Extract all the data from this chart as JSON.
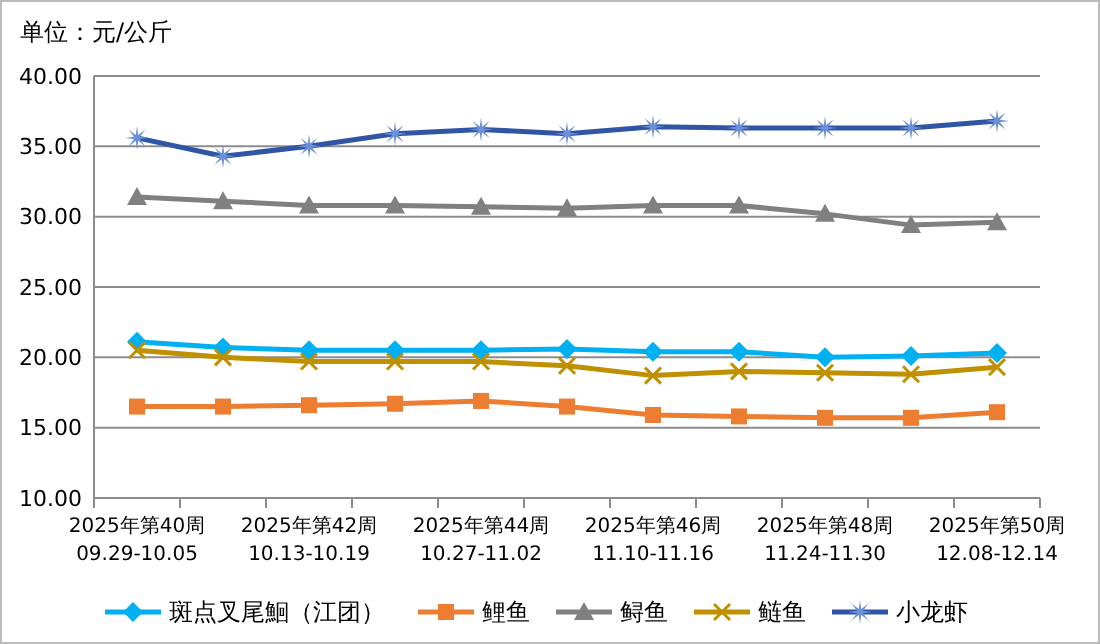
{
  "chart_data": {
    "type": "line",
    "ylabel": "单位：元/公斤",
    "categories": [
      "2025年第40周\n09.29-10.05",
      null,
      "2025年第42周\n10.13-10.19",
      null,
      "2025年第44周\n10.27-11.02",
      null,
      "2025年第46周\n11.10-11.16",
      null,
      "2025年第48周\n11.24-11.30",
      null,
      "2025年第50周\n12.08-12.14"
    ],
    "series": [
      {
        "name": "斑点叉尾鮰（江团）",
        "color": "#00b0f0",
        "marker": "diamond",
        "values": [
          21.1,
          20.7,
          20.5,
          20.5,
          20.5,
          20.6,
          20.4,
          20.4,
          20.0,
          20.1,
          20.3
        ]
      },
      {
        "name": "鲤鱼",
        "color": "#ed7d31",
        "marker": "square",
        "values": [
          16.5,
          16.5,
          16.6,
          16.7,
          16.9,
          16.5,
          15.9,
          15.8,
          15.7,
          15.7,
          16.1
        ]
      },
      {
        "name": "鲟鱼",
        "color": "#808080",
        "marker": "triangle",
        "values": [
          31.4,
          31.1,
          30.8,
          30.8,
          30.7,
          30.6,
          30.8,
          30.8,
          30.2,
          29.4,
          29.6
        ]
      },
      {
        "name": "鲢鱼",
        "color": "#bf9000",
        "marker": "cross",
        "values": [
          20.5,
          20.0,
          19.7,
          19.7,
          19.7,
          19.4,
          18.7,
          19.0,
          18.9,
          18.8,
          19.3
        ]
      },
      {
        "name": "小龙虾",
        "color": "#2f55a4",
        "marker": "star",
        "values": [
          35.6,
          34.3,
          35.0,
          35.9,
          36.2,
          35.9,
          36.4,
          36.3,
          36.3,
          36.3,
          36.8
        ]
      }
    ],
    "ylim": [
      10,
      40
    ],
    "yticks": [
      {
        "value": 10,
        "label": "10.00"
      },
      {
        "value": 15,
        "label": "15.00"
      },
      {
        "value": 20,
        "label": "20.00"
      },
      {
        "value": 25,
        "label": "25.00"
      },
      {
        "value": 30,
        "label": "30.00"
      },
      {
        "value": 35,
        "label": "35.00"
      },
      {
        "value": 40,
        "label": "40.00"
      }
    ],
    "grid": "y",
    "legend": "bottom",
    "line_style": "solid"
  }
}
